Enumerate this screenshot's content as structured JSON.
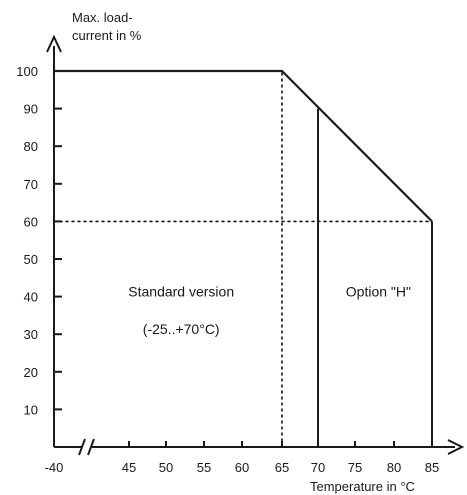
{
  "chart_data": {
    "type": "line",
    "ylabel": "Max. load-\ncurrent in %",
    "xlabel": "Temperature in °C",
    "xlim": [
      40,
      87
    ],
    "ylim": [
      0,
      105
    ],
    "x_ticks": [
      {
        "value": 40,
        "label": "-40"
      },
      {
        "value": 45,
        "label": "45"
      },
      {
        "value": 50,
        "label": "50"
      },
      {
        "value": 55,
        "label": "55"
      },
      {
        "value": 60,
        "label": "60"
      },
      {
        "value": 65,
        "label": "65"
      },
      {
        "value": 70,
        "label": "70"
      },
      {
        "value": 75,
        "label": "75"
      },
      {
        "value": 80,
        "label": "80"
      },
      {
        "value": 85,
        "label": "85"
      }
    ],
    "y_ticks": [
      10,
      20,
      30,
      40,
      50,
      60,
      70,
      80,
      90,
      100
    ],
    "axis_break": "x",
    "series": [
      {
        "x": [
          40,
          65,
          85
        ],
        "y": [
          100,
          100,
          60
        ]
      }
    ],
    "reference_lines": [
      {
        "orientation": "vertical",
        "x": 65,
        "y_from": 0,
        "y_to": 100,
        "style": "dotted"
      },
      {
        "orientation": "horizontal",
        "y": 60,
        "x_from": 40,
        "x_to": 85,
        "style": "dotted"
      },
      {
        "orientation": "vertical",
        "x": 70,
        "y_from": 0,
        "y_to": 90,
        "style": "solid"
      },
      {
        "orientation": "vertical",
        "x": 85,
        "y_from": 0,
        "y_to": 60,
        "style": "solid"
      }
    ],
    "annotations": [
      {
        "text": "Standard version",
        "x": 52,
        "y": 40
      },
      {
        "text": "(-25..+70°C)",
        "x": 52,
        "y": 30
      },
      {
        "text": "Option \"H\"",
        "x": 78,
        "y": 40
      }
    ]
  }
}
